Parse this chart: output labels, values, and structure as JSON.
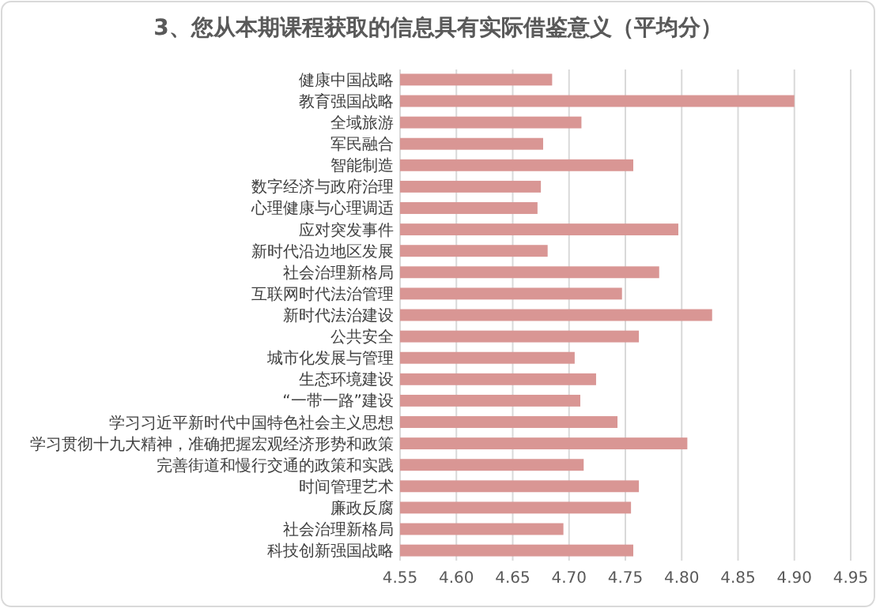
{
  "chart_data": {
    "type": "bar",
    "orientation": "horizontal",
    "title": "3、您从本期课程获取的信息具有实际借鉴意义（平均分）",
    "categories": [
      "健康中国战略",
      "教育强国战略",
      "全域旅游",
      "军民融合",
      "智能制造",
      "数字经济与政府治理",
      "心理健康与心理调适",
      "应对突发事件",
      "新时代沿边地区发展",
      "社会治理新格局",
      "互联网时代法治管理",
      "新时代法治建设",
      "公共安全",
      "城市化发展与管理",
      "生态环境建设",
      "“一带一路”建设",
      "学习习近平新时代中国特色社会主义思想",
      "学习贯彻十九大精神，准确把握宏观经济形势和政策",
      "完善街道和慢行交通的政策和实践",
      "时间管理艺术",
      "廉政反腐",
      "社会治理新格局",
      "科技创新强国战略"
    ],
    "values": [
      4.685,
      4.9,
      4.711,
      4.677,
      4.757,
      4.675,
      4.672,
      4.797,
      4.681,
      4.78,
      4.747,
      4.827,
      4.762,
      4.705,
      4.724,
      4.71,
      4.743,
      4.805,
      4.713,
      4.762,
      4.755,
      4.695,
      4.757
    ],
    "color": "#d99694",
    "xlim": [
      4.55,
      4.95
    ],
    "xticks": [
      4.55,
      {
        "value": 4.6,
        "label": "4.60"
      },
      4.65,
      {
        "value": 4.7,
        "label": "4.70"
      },
      4.75,
      {
        "value": 4.8,
        "label": "4.80"
      },
      4.85,
      {
        "value": 4.9,
        "label": "4.90"
      },
      4.95
    ],
    "grid": "x"
  }
}
